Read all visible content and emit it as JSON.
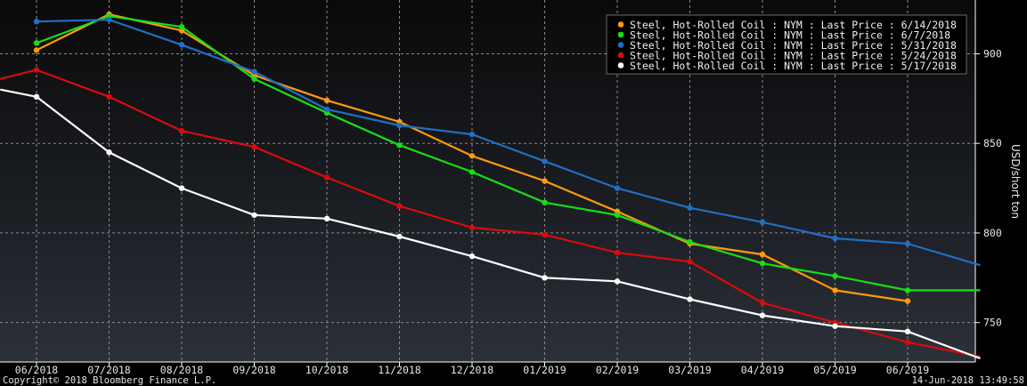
{
  "chart_data": {
    "type": "line",
    "ylabel": "USD/short ton",
    "ylim": [
      728,
      930
    ],
    "yticks": [
      750,
      800,
      850,
      900
    ],
    "ytick_labels": [
      "750",
      "800",
      "850",
      "900"
    ],
    "categories": [
      "06/2018",
      "07/2018",
      "08/2018",
      "09/2018",
      "10/2018",
      "11/2018",
      "12/2018",
      "01/2019",
      "02/2019",
      "03/2019",
      "04/2019",
      "05/2019",
      "06/2019"
    ],
    "grid": true,
    "legend_position": "top-right",
    "series": [
      {
        "name": "Steel, Hot-Rolled Coil : NYM : Last Price : 6/14/2018",
        "color": "#ff9a0e",
        "points": [
          [
            0,
            902
          ],
          [
            1,
            922
          ],
          [
            2,
            913
          ],
          [
            3,
            888
          ],
          [
            4,
            874
          ],
          [
            5,
            862
          ],
          [
            6,
            843
          ],
          [
            7,
            829
          ],
          [
            8,
            812
          ],
          [
            9,
            794
          ],
          [
            10,
            788
          ],
          [
            11,
            768
          ],
          [
            12,
            762
          ]
        ]
      },
      {
        "name": "Steel, Hot-Rolled Coil : NYM : Last Price : 6/7/2018",
        "color": "#16e016",
        "points": [
          [
            0,
            906
          ],
          [
            1,
            921
          ],
          [
            2,
            915
          ],
          [
            3,
            886
          ],
          [
            4,
            867
          ],
          [
            5,
            849
          ],
          [
            6,
            834
          ],
          [
            7,
            817
          ],
          [
            8,
            810
          ],
          [
            9,
            795
          ],
          [
            10,
            783
          ],
          [
            11,
            776
          ],
          [
            12,
            768
          ]
        ],
        "extend_to": [
          13,
          768
        ]
      },
      {
        "name": "Steel, Hot-Rolled Coil : NYM : Last Price : 5/31/2018",
        "color": "#1f6fc6",
        "points": [
          [
            0,
            918
          ],
          [
            1,
            919
          ],
          [
            2,
            905
          ],
          [
            3,
            890
          ],
          [
            4,
            869
          ],
          [
            5,
            860
          ],
          [
            6,
            855
          ],
          [
            7,
            840
          ],
          [
            8,
            825
          ],
          [
            9,
            814
          ],
          [
            10,
            806
          ],
          [
            11,
            797
          ],
          [
            12,
            794
          ]
        ],
        "extend_to": [
          13,
          782
        ]
      },
      {
        "name": "Steel, Hot-Rolled Coil : NYM : Last Price : 5/24/2018",
        "color": "#d80c0c",
        "points": [
          [
            0,
            891
          ],
          [
            1,
            876
          ],
          [
            2,
            857
          ],
          [
            3,
            848
          ],
          [
            4,
            831
          ],
          [
            5,
            815
          ],
          [
            6,
            803
          ],
          [
            7,
            799
          ],
          [
            8,
            789
          ],
          [
            9,
            784
          ],
          [
            10,
            761
          ],
          [
            11,
            750
          ],
          [
            12,
            739
          ]
        ],
        "extend_from": [
          -0.5,
          886
        ],
        "extend_to": [
          13,
          731
        ]
      },
      {
        "name": "Steel, Hot-Rolled Coil : NYM : Last Price : 5/17/2018",
        "color": "#ffffff",
        "points": [
          [
            0,
            876
          ],
          [
            1,
            845
          ],
          [
            2,
            825
          ],
          [
            3,
            810
          ],
          [
            4,
            808
          ],
          [
            5,
            798
          ],
          [
            6,
            787
          ],
          [
            7,
            775
          ],
          [
            8,
            773
          ],
          [
            9,
            763
          ],
          [
            10,
            754
          ],
          [
            11,
            748
          ],
          [
            12,
            745
          ]
        ],
        "extend_from": [
          -0.5,
          880
        ],
        "extend_to": [
          13,
          730
        ]
      }
    ]
  },
  "footer": {
    "copyright": "Copyright© 2018 Bloomberg Finance L.P.",
    "timestamp": "14-Jun-2018 13:49:58"
  }
}
